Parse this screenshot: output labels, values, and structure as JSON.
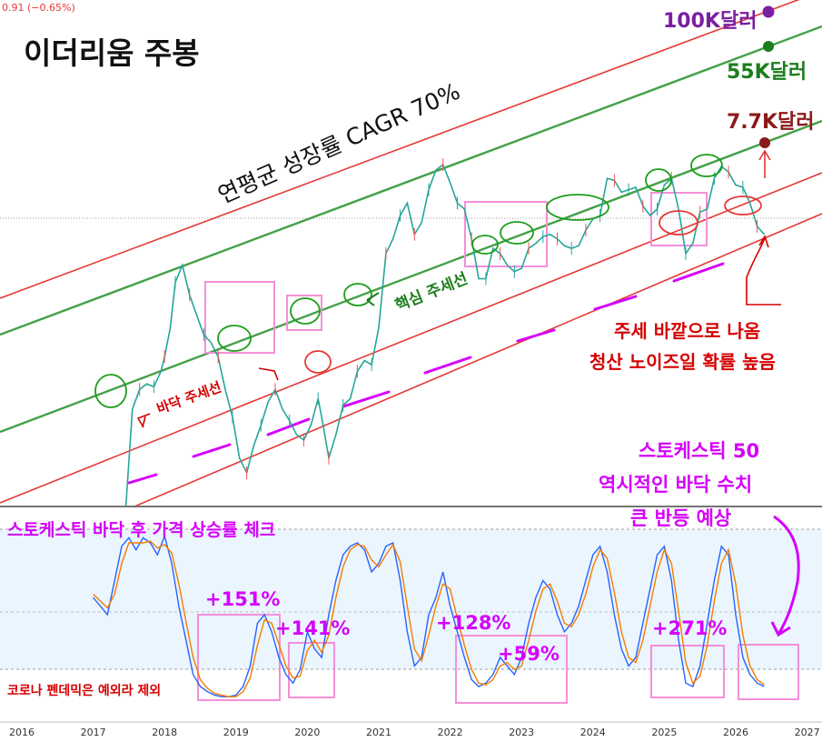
{
  "header": {
    "price_change": "0.91 (−0.65%)"
  },
  "chart_data": [
    {
      "type": "line",
      "title": "이더리움 주봉",
      "subtitle": "연평균 성장률 CAGR 70%",
      "xlabel": "",
      "ylabel": "",
      "ylim_log": true,
      "x_ticks": [
        "2016",
        "2017",
        "2018",
        "2019",
        "2020",
        "2021",
        "2022",
        "2023",
        "2024",
        "2025",
        "2026",
        "2027"
      ],
      "price": {
        "x": [
          2016.5,
          2016.65,
          2016.8,
          2016.95,
          2017.05,
          2017.15,
          2017.25,
          2017.35,
          2017.45,
          2017.55,
          2017.65,
          2017.75,
          2017.85,
          2017.95,
          2018.0,
          2018.08,
          2018.15,
          2018.25,
          2018.35,
          2018.45,
          2018.55,
          2018.65,
          2018.75,
          2018.85,
          2018.95,
          2019.05,
          2019.15,
          2019.25,
          2019.35,
          2019.45,
          2019.55,
          2019.65,
          2019.75,
          2019.85,
          2019.95,
          2020.05,
          2020.15,
          2020.2,
          2020.3,
          2020.4,
          2020.5,
          2020.6,
          2020.7,
          2020.8,
          2020.9,
          2021.0,
          2021.1,
          2021.2,
          2021.3,
          2021.4,
          2021.5,
          2021.6,
          2021.7,
          2021.8,
          2021.9,
          2022.0,
          2022.1,
          2022.2,
          2022.3,
          2022.4,
          2022.5,
          2022.6,
          2022.7,
          2022.8,
          2022.9,
          2023.0,
          2023.1,
          2023.2,
          2023.3,
          2023.4,
          2023.5,
          2023.6,
          2023.7,
          2023.8,
          2023.9,
          2024.0,
          2024.1,
          2024.2,
          2024.3,
          2024.4,
          2024.5,
          2024.6,
          2024.7,
          2024.8,
          2024.9,
          2025.0,
          2025.1,
          2025.2,
          2025.3,
          2025.4,
          2025.5,
          2025.6,
          2025.7,
          2025.8,
          2025.9,
          2026.0,
          2026.1,
          2026.2,
          2026.3,
          2026.4
        ],
        "y": [
          11,
          13,
          10,
          8,
          9,
          11,
          13,
          25,
          60,
          220,
          280,
          300,
          290,
          350,
          420,
          600,
          1050,
          1300,
          900,
          700,
          550,
          500,
          420,
          280,
          200,
          120,
          100,
          140,
          180,
          240,
          280,
          220,
          190,
          160,
          150,
          180,
          250,
          200,
          120,
          160,
          230,
          250,
          350,
          400,
          380,
          600,
          1500,
          1800,
          2400,
          2800,
          1900,
          2200,
          3300,
          4200,
          4500,
          3600,
          2800,
          2600,
          1800,
          1100,
          1100,
          1600,
          1500,
          1300,
          1200,
          1250,
          1600,
          1700,
          1850,
          1900,
          1800,
          1650,
          1600,
          1650,
          2000,
          2300,
          2400,
          3800,
          3700,
          3200,
          3300,
          3400,
          2700,
          2400,
          2600,
          3500,
          3800,
          2600,
          1500,
          1700,
          2500,
          2600,
          3800,
          4400,
          4100,
          3500,
          3400,
          2800,
          2100,
          1900
        ]
      },
      "channel_lines": [
        {
          "name": "연평균 성장률 CAGR 70%",
          "role": "upper",
          "color": "#e53935"
        },
        {
          "name": "",
          "role": "upper-middle",
          "color": "#43a047"
        },
        {
          "name": "핵심 주세선",
          "role": "core",
          "color": "#43a047"
        },
        {
          "name": "바닥 주세선",
          "role": "floor",
          "color": "#e53935"
        },
        {
          "name": "",
          "role": "lower",
          "color": "#e53935"
        }
      ],
      "targets": [
        {
          "label": "100K달러",
          "value": 100000,
          "color": "#7b1fa2"
        },
        {
          "label": "55K달러",
          "value": 55000,
          "color": "#1b7d1b"
        },
        {
          "label": "7.7K달러",
          "value": 7700,
          "color": "#b71c1c"
        }
      ],
      "annotations": {
        "core_trend": "핵심 주세선",
        "floor_trend": "바닥 주세선",
        "breakout_line1": "주세 바깥으로 나옴",
        "breakout_line2": "청산 노이즈일 확률 높음"
      }
    },
    {
      "type": "line",
      "title": "스토케스틱 바닥 후 가격 상승률 체크",
      "xlabel": "",
      "ylabel": "",
      "ylim": [
        0,
        100
      ],
      "series": [
        {
          "name": "",
          "color": "#2962ff",
          "x": [
            2017.0,
            2017.1,
            2017.2,
            2017.3,
            2017.4,
            2017.5,
            2017.6,
            2017.7,
            2017.8,
            2017.9,
            2018.0,
            2018.1,
            2018.2,
            2018.3,
            2018.4,
            2018.5,
            2018.6,
            2018.7,
            2018.8,
            2018.9,
            2019.0,
            2019.1,
            2019.2,
            2019.3,
            2019.4,
            2019.5,
            2019.6,
            2019.7,
            2019.8,
            2019.9,
            2020.0,
            2020.1,
            2020.2,
            2020.3,
            2020.4,
            2020.5,
            2020.6,
            2020.7,
            2020.8,
            2020.9,
            2021.0,
            2021.1,
            2021.2,
            2021.3,
            2021.4,
            2021.5,
            2021.6,
            2021.7,
            2021.8,
            2021.9,
            2022.0,
            2022.1,
            2022.2,
            2022.3,
            2022.4,
            2022.5,
            2022.6,
            2022.7,
            2022.8,
            2022.9,
            2023.0,
            2023.1,
            2023.2,
            2023.3,
            2023.4,
            2023.5,
            2023.6,
            2023.7,
            2023.8,
            2023.9,
            2024.0,
            2024.1,
            2024.2,
            2024.3,
            2024.4,
            2024.5,
            2024.6,
            2024.7,
            2024.8,
            2024.9,
            2025.0,
            2025.1,
            2025.2,
            2025.3,
            2025.4,
            2025.5,
            2025.6,
            2025.7,
            2025.8,
            2025.9,
            2026.0,
            2026.1,
            2026.2,
            2026.3,
            2026.4
          ],
          "values": [
            60,
            55,
            50,
            70,
            90,
            95,
            88,
            95,
            92,
            85,
            96,
            80,
            55,
            35,
            15,
            8,
            5,
            3,
            2,
            2,
            3,
            8,
            20,
            45,
            50,
            40,
            25,
            15,
            10,
            18,
            40,
            30,
            25,
            50,
            70,
            85,
            90,
            92,
            88,
            75,
            80,
            90,
            92,
            70,
            40,
            20,
            25,
            50,
            60,
            75,
            55,
            40,
            25,
            12,
            8,
            10,
            15,
            25,
            20,
            15,
            25,
            45,
            60,
            70,
            65,
            50,
            40,
            45,
            55,
            70,
            85,
            90,
            75,
            50,
            30,
            20,
            25,
            45,
            65,
            85,
            90,
            70,
            35,
            10,
            8,
            20,
            45,
            70,
            90,
            85,
            50,
            25,
            15,
            10,
            8
          ]
        },
        {
          "name": "",
          "color": "#f57c00",
          "x": [
            2017.0,
            2017.1,
            2017.2,
            2017.3,
            2017.4,
            2017.5,
            2017.6,
            2017.7,
            2017.8,
            2017.9,
            2018.0,
            2018.1,
            2018.2,
            2018.3,
            2018.4,
            2018.5,
            2018.6,
            2018.7,
            2018.8,
            2018.9,
            2019.0,
            2019.1,
            2019.2,
            2019.3,
            2019.4,
            2019.5,
            2019.6,
            2019.7,
            2019.8,
            2019.9,
            2020.0,
            2020.1,
            2020.2,
            2020.3,
            2020.4,
            2020.5,
            2020.6,
            2020.7,
            2020.8,
            2020.9,
            2021.0,
            2021.1,
            2021.2,
            2021.3,
            2021.4,
            2021.5,
            2021.6,
            2021.7,
            2021.8,
            2021.9,
            2022.0,
            2022.1,
            2022.2,
            2022.3,
            2022.4,
            2022.5,
            2022.6,
            2022.7,
            2022.8,
            2022.9,
            2023.0,
            2023.1,
            2023.2,
            2023.3,
            2023.4,
            2023.5,
            2023.6,
            2023.7,
            2023.8,
            2023.9,
            2024.0,
            2024.1,
            2024.2,
            2024.3,
            2024.4,
            2024.5,
            2024.6,
            2024.7,
            2024.8,
            2024.9,
            2025.0,
            2025.1,
            2025.2,
            2025.3,
            2025.4,
            2025.5,
            2025.6,
            2025.7,
            2025.8,
            2025.9,
            2026.0,
            2026.1,
            2026.2,
            2026.3,
            2026.4
          ],
          "values": [
            62,
            58,
            54,
            62,
            80,
            92,
            92,
            92,
            93,
            89,
            91,
            86,
            68,
            46,
            25,
            12,
            7,
            4,
            3,
            2,
            2,
            5,
            13,
            32,
            47,
            45,
            33,
            20,
            13,
            14,
            29,
            35,
            28,
            38,
            60,
            78,
            88,
            91,
            90,
            82,
            78,
            85,
            91,
            81,
            55,
            30,
            23,
            38,
            55,
            68,
            65,
            48,
            32,
            18,
            10,
            9,
            12,
            20,
            22,
            18,
            20,
            35,
            52,
            65,
            68,
            58,
            45,
            43,
            50,
            62,
            78,
            88,
            83,
            63,
            40,
            25,
            22,
            35,
            55,
            75,
            88,
            80,
            52,
            22,
            10,
            14,
            32,
            58,
            80,
            88,
            68,
            38,
            20,
            12,
            9
          ]
        }
      ],
      "gains": [
        {
          "label": "+151%"
        },
        {
          "label": "+141%"
        },
        {
          "label": "+128%"
        },
        {
          "label": "+59%"
        },
        {
          "label": "+271%"
        }
      ],
      "note_left": "코로나 펜데믹은 예외라 제외",
      "note_right_line1": "스토케스틱 50",
      "note_right_line2": "역시적인 바닥 수치",
      "note_right_line3": "큰 반등 예상"
    }
  ]
}
